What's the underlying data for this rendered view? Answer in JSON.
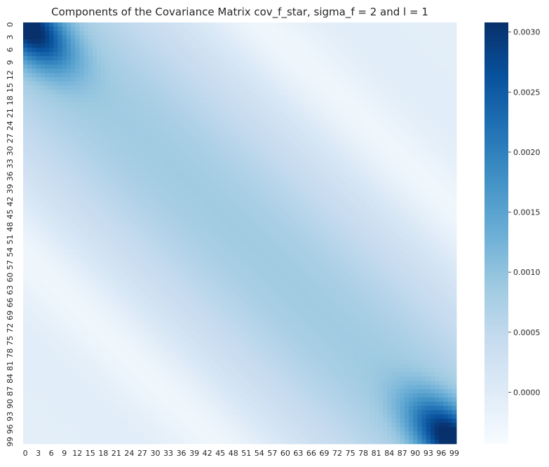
{
  "chart_data": {
    "type": "heatmap",
    "title": "Components of the Covariance Matrix cov_f_star, sigma_f = 2 and l = 1",
    "xlabel": "",
    "ylabel": "",
    "n_rows": 100,
    "n_cols": 100,
    "x_tick_labels": [
      "0",
      "3",
      "6",
      "9",
      "12",
      "15",
      "18",
      "21",
      "24",
      "27",
      "30",
      "33",
      "36",
      "39",
      "42",
      "45",
      "48",
      "51",
      "54",
      "57",
      "60",
      "63",
      "66",
      "69",
      "72",
      "75",
      "78",
      "81",
      "84",
      "87",
      "90",
      "93",
      "96",
      "99"
    ],
    "y_tick_labels": [
      "0",
      "3",
      "6",
      "9",
      "12",
      "15",
      "18",
      "21",
      "24",
      "27",
      "30",
      "33",
      "36",
      "39",
      "42",
      "45",
      "48",
      "51",
      "54",
      "57",
      "60",
      "63",
      "66",
      "69",
      "72",
      "75",
      "78",
      "81",
      "84",
      "87",
      "90",
      "93",
      "96",
      "99"
    ],
    "colorbar": {
      "cmap": "Blues",
      "vmin": -0.00043,
      "vmax": 0.00308,
      "tick_labels": [
        "0.0000",
        "0.0005",
        "0.0010",
        "0.0015",
        "0.0020",
        "0.0025",
        "0.0030"
      ],
      "tick_values": [
        0.0,
        0.0005,
        0.001,
        0.0015,
        0.002,
        0.0025,
        0.003
      ]
    },
    "value_summary": {
      "corner_top_left": 0.0028,
      "corner_bottom_right": 0.0031,
      "center_diagonal": 0.00085,
      "off_diagonal_far_min": -0.00043,
      "grid": false
    }
  }
}
